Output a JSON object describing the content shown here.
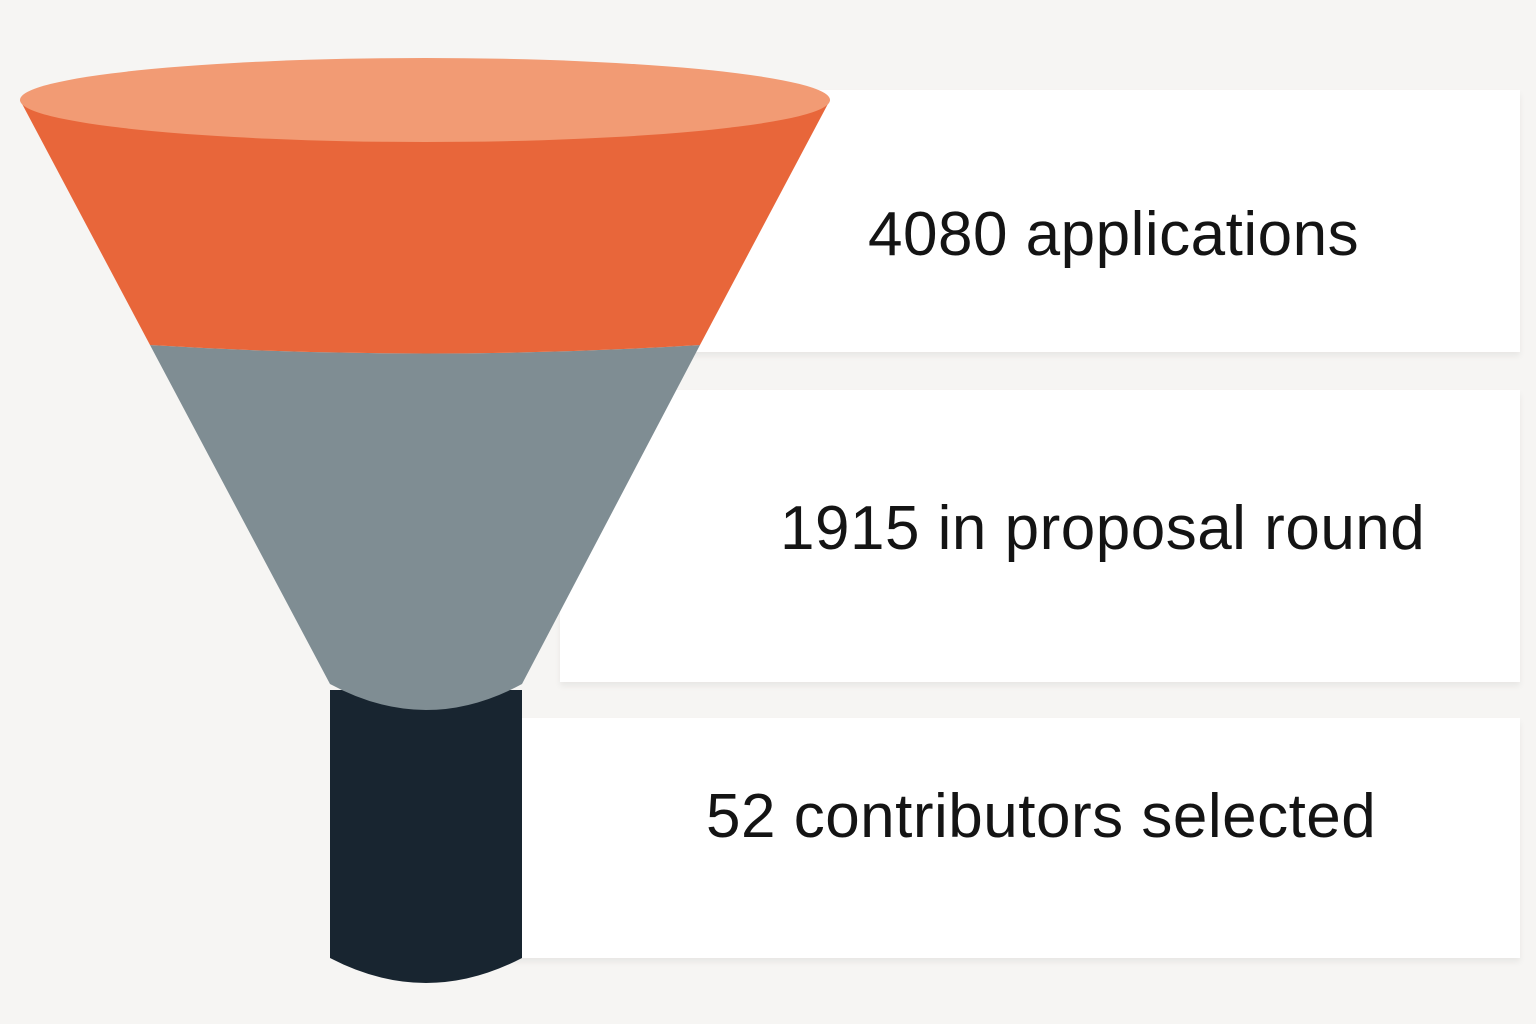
{
  "stages": [
    {
      "label": "4080 applications",
      "value": 4080
    },
    {
      "label": "1915 in proposal round",
      "value": 1915
    },
    {
      "label": "52 contributors selected",
      "value": 52
    }
  ],
  "colors": {
    "stage_top_rim": "#f29b74",
    "stage_top": "#e8663a",
    "stage_middle": "#7f8d93",
    "stage_spout": "#182530",
    "panel_background": "#ffffff",
    "page_background": "#f6f5f3",
    "text": "#141414"
  }
}
